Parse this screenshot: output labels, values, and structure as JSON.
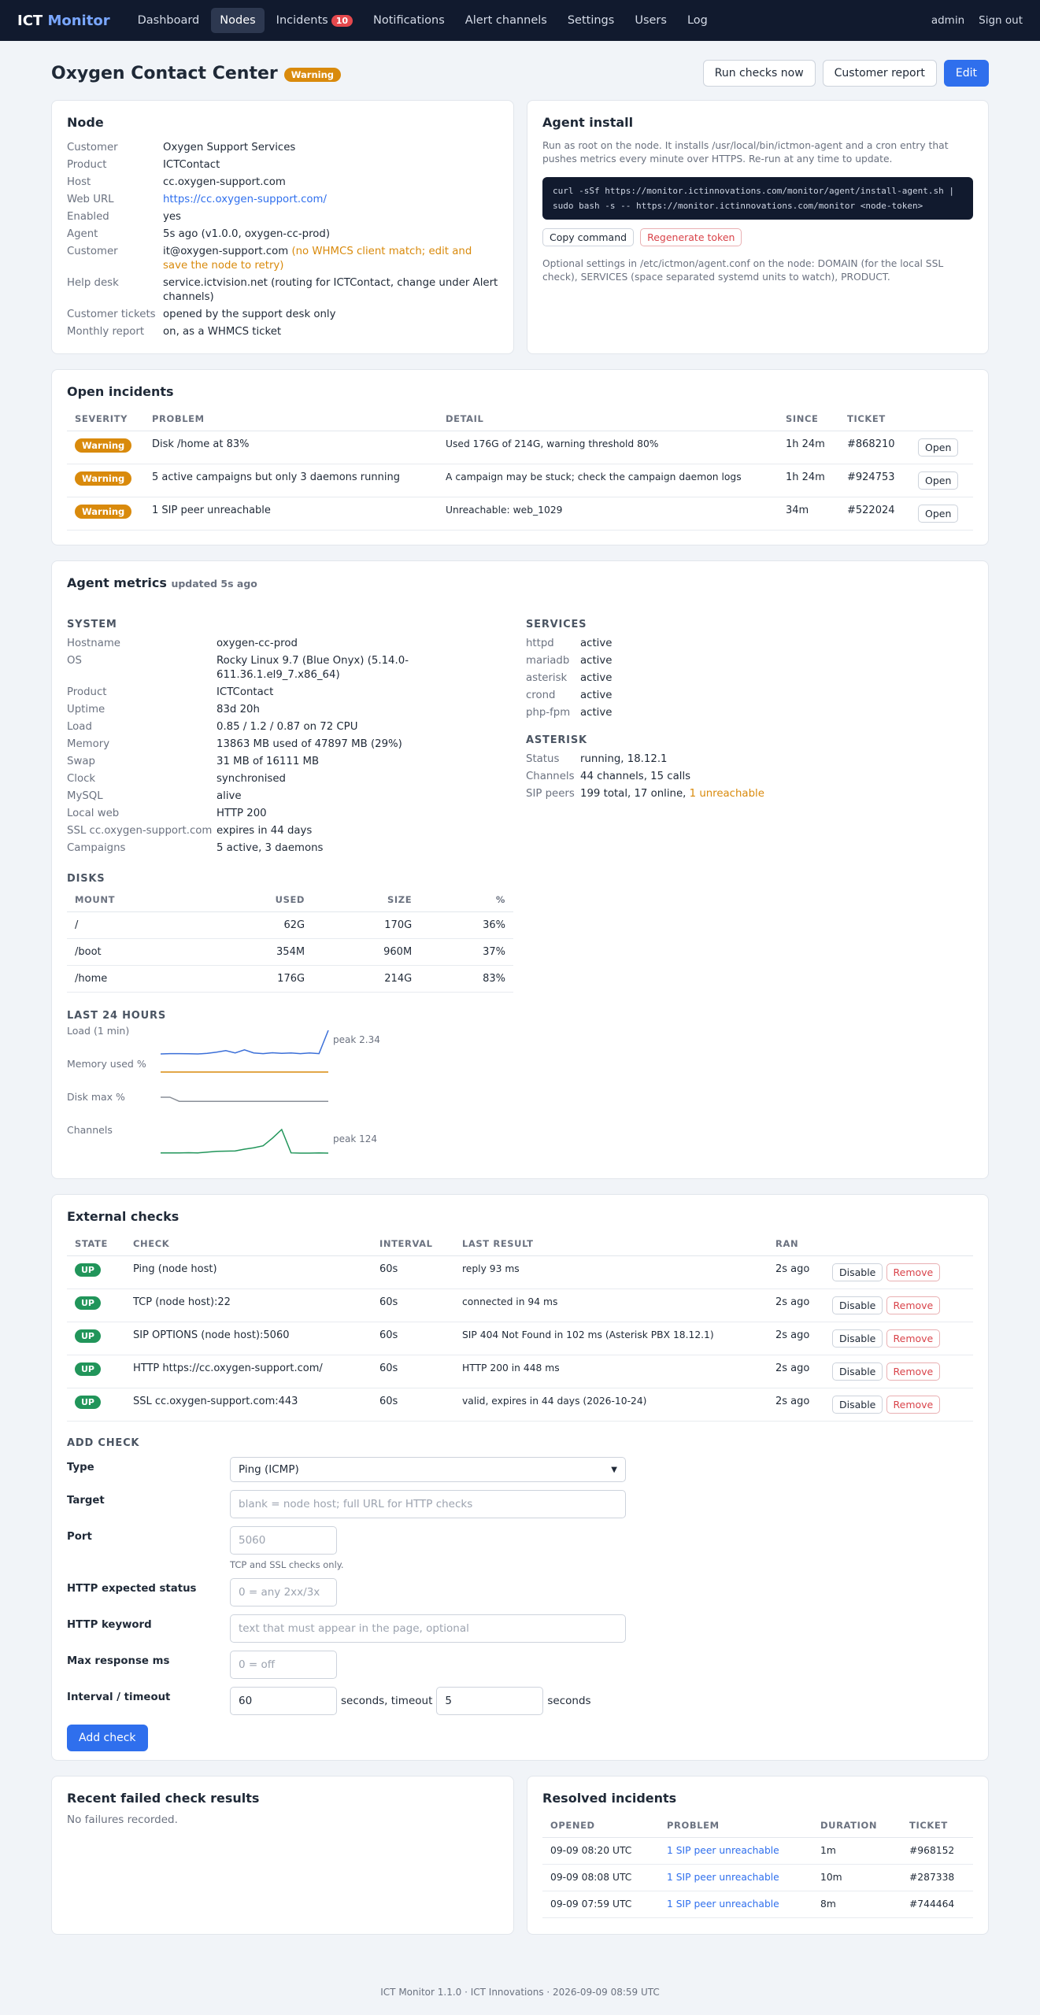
{
  "nav": {
    "brand1": "ICT",
    "brand2": "Monitor",
    "items": [
      "Dashboard",
      "Nodes",
      "Incidents",
      "Notifications",
      "Alert channels",
      "Settings",
      "Users",
      "Log"
    ],
    "incident_count": "10",
    "user": "admin",
    "signout": "Sign out"
  },
  "page": {
    "title": "Oxygen Contact Center",
    "status": "Warning",
    "buttons": {
      "run": "Run checks now",
      "report": "Customer report",
      "edit": "Edit"
    }
  },
  "node": {
    "title": "Node",
    "fields": [
      {
        "k": "Customer",
        "v": "Oxygen Support Services"
      },
      {
        "k": "Product",
        "v": "ICTContact"
      },
      {
        "k": "Host",
        "v": "cc.oxygen-support.com"
      },
      {
        "k": "Web URL",
        "v": "https://cc.oxygen-support.com/"
      },
      {
        "k": "Enabled",
        "v": "yes"
      },
      {
        "k": "Agent",
        "v": "5s ago (v1.0.0, oxygen-cc-prod)"
      },
      {
        "k": "Customer",
        "v": "it@oxygen-support.com",
        "note": "(no WHMCS client match; edit and save the node to retry)"
      },
      {
        "k": "Help desk",
        "v": "service.ictvision.net (routing for ICTContact, change under Alert channels)"
      },
      {
        "k": "Customer tickets",
        "v": "opened by the support desk only"
      },
      {
        "k": "Monthly report",
        "v": "on, as a WHMCS ticket"
      }
    ]
  },
  "agent": {
    "title": "Agent install",
    "desc": "Run as root on the node. It installs /usr/local/bin/ictmon-agent and a cron entry that pushes metrics every minute over HTTPS. Re-run at any time to update.",
    "command": "curl -sSf https://monitor.ictinnovations.com/monitor/agent/install-agent.sh | sudo bash -s -- https://monitor.ictinnovations.com/monitor <node-token>",
    "copy": "Copy command",
    "regen": "Regenerate token",
    "note": "Optional settings in /etc/ictmon/agent.conf on the node: DOMAIN (for the local SSL check), SERVICES (space separated systemd units to watch), PRODUCT."
  },
  "incidents": {
    "title": "Open incidents",
    "headers": [
      "Severity",
      "Problem",
      "Detail",
      "Since",
      "Ticket",
      ""
    ],
    "rows": [
      {
        "sev": "Warning",
        "problem": "Disk /home at 83%",
        "detail": "Used 176G of 214G, warning threshold 80%",
        "since": "1h 24m",
        "ticket": "#868210",
        "action": "Open"
      },
      {
        "sev": "Warning",
        "problem": "5 active campaigns but only 3 daemons running",
        "detail": "A campaign may be stuck; check the campaign daemon logs",
        "since": "1h 24m",
        "ticket": "#924753",
        "action": "Open"
      },
      {
        "sev": "Warning",
        "problem": "1 SIP peer unreachable",
        "detail": "Unreachable: web_1029",
        "since": "34m",
        "ticket": "#522024",
        "action": "Open"
      }
    ]
  },
  "metrics": {
    "title": "Agent metrics",
    "updated": "updated 5s ago",
    "system_title": "System",
    "system": [
      {
        "k": "Hostname",
        "v": "oxygen-cc-prod"
      },
      {
        "k": "OS",
        "v": "Rocky Linux 9.7 (Blue Onyx) (5.14.0-611.36.1.el9_7.x86_64)"
      },
      {
        "k": "Product",
        "v": "ICTContact"
      },
      {
        "k": "Uptime",
        "v": "83d 20h"
      },
      {
        "k": "Load",
        "v": "0.85 / 1.2 / 0.87 on 72 CPU"
      },
      {
        "k": "Memory",
        "v": "13863 MB used of 47897 MB (29%)"
      },
      {
        "k": "Swap",
        "v": "31 MB of 16111 MB"
      },
      {
        "k": "Clock",
        "v": "synchronised"
      },
      {
        "k": "MySQL",
        "v": "alive"
      },
      {
        "k": "Local web",
        "v": "HTTP 200"
      },
      {
        "k": "SSL cc.oxygen-support.com",
        "v": "expires in 44 days"
      },
      {
        "k": "Campaigns",
        "v": "5 active, 3 daemons"
      }
    ],
    "services_title": "Services",
    "services": [
      {
        "k": "httpd",
        "v": "active"
      },
      {
        "k": "mariadb",
        "v": "active"
      },
      {
        "k": "asterisk",
        "v": "active"
      },
      {
        "k": "crond",
        "v": "active"
      },
      {
        "k": "php-fpm",
        "v": "active"
      }
    ],
    "asterisk_title": "Asterisk",
    "asterisk": [
      {
        "k": "Status",
        "v": "running, 18.12.1"
      },
      {
        "k": "Channels",
        "v": "44 channels, 15 calls"
      },
      {
        "k": "SIP peers",
        "v": "199 total, 17 online,",
        "warn": "1 unreachable"
      }
    ],
    "disks_title": "Disks",
    "disk_headers": [
      "Mount",
      "Used",
      "Size",
      "%"
    ],
    "disks": [
      {
        "m": "/",
        "u": "62G",
        "s": "170G",
        "p": "36%"
      },
      {
        "m": "/boot",
        "u": "354M",
        "s": "960M",
        "p": "37%"
      },
      {
        "m": "/home",
        "u": "176G",
        "s": "214G",
        "p": "83%"
      }
    ],
    "last24_title": "Last 24 hours",
    "sparks": [
      {
        "label": "Load (1 min)",
        "peak": "peak 2.34",
        "color": "#3b6fd8",
        "values": [
          0.78,
          0.8,
          0.8,
          0.79,
          0.78,
          0.82,
          0.9,
          1.0,
          0.85,
          1.05,
          0.85,
          0.8,
          0.86,
          0.82,
          0.84,
          0.8,
          0.85,
          0.8,
          2.34
        ]
      },
      {
        "label": "Memory used %",
        "peak": "",
        "color": "#d98a0c",
        "values": [
          29,
          29,
          29,
          29,
          29,
          29,
          29,
          29,
          29,
          29,
          29,
          29,
          29,
          29,
          29,
          29,
          29,
          29,
          29
        ]
      },
      {
        "label": "Disk max %",
        "peak": "",
        "color": "#8a8f98",
        "values": [
          84,
          84,
          83,
          83,
          83,
          83,
          83,
          83,
          83,
          83,
          83,
          83,
          83,
          83,
          83,
          83,
          83,
          83,
          83
        ]
      },
      {
        "label": "Channels",
        "peak": "peak 124",
        "color": "#21955a",
        "values": [
          6,
          6,
          6,
          7,
          6,
          10,
          14,
          15,
          16,
          25,
          32,
          42,
          80,
          124,
          6,
          5,
          5,
          6,
          5
        ]
      }
    ]
  },
  "checks": {
    "title": "External checks",
    "headers": [
      "State",
      "Check",
      "Interval",
      "Last result",
      "Ran",
      ""
    ],
    "rows": [
      {
        "state": "UP",
        "check": "Ping (node host)",
        "interval": "60s",
        "result": "reply 93 ms",
        "ran": "2s ago"
      },
      {
        "state": "UP",
        "check": "TCP (node host):22",
        "interval": "60s",
        "result": "connected in 94 ms",
        "ran": "2s ago"
      },
      {
        "state": "UP",
        "check": "SIP OPTIONS (node host):5060",
        "interval": "60s",
        "result": "SIP 404 Not Found in 102 ms (Asterisk PBX 18.12.1)",
        "ran": "2s ago"
      },
      {
        "state": "UP",
        "check": "HTTP https://cc.oxygen-support.com/",
        "interval": "60s",
        "result": "HTTP 200 in 448 ms",
        "ran": "2s ago"
      },
      {
        "state": "UP",
        "check": "SSL cc.oxygen-support.com:443",
        "interval": "60s",
        "result": "valid, expires in 44 days (2026-10-24)",
        "ran": "2s ago"
      }
    ],
    "disable": "Disable",
    "remove": "Remove"
  },
  "addcheck": {
    "title": "Add check",
    "type_label": "Type",
    "type_value": "Ping (ICMP)",
    "target_label": "Target",
    "target_ph": "blank = node host; full URL for HTTP checks",
    "port_label": "Port",
    "port_ph": "5060",
    "port_hint": "TCP and SSL checks only.",
    "status_label": "HTTP expected status",
    "status_ph": "0 = any 2xx/3x",
    "keyword_label": "HTTP keyword",
    "keyword_ph": "text that must appear in the page, optional",
    "maxms_label": "Max response ms",
    "maxms_ph": "0 = off",
    "interval_label": "Interval / timeout",
    "interval_value": "60",
    "mid_text": "seconds, timeout",
    "timeout_value": "5",
    "end_text": "seconds",
    "button": "Add check"
  },
  "failed": {
    "title": "Recent failed check results",
    "empty": "No failures recorded."
  },
  "resolved": {
    "title": "Resolved incidents",
    "headers": [
      "Opened",
      "Problem",
      "Duration",
      "Ticket"
    ],
    "rows": [
      {
        "o": "09-09 08:20 UTC",
        "p": "1 SIP peer unreachable",
        "d": "1m",
        "t": "#968152"
      },
      {
        "o": "09-09 08:08 UTC",
        "p": "1 SIP peer unreachable",
        "d": "10m",
        "t": "#287338"
      },
      {
        "o": "09-09 07:59 UTC",
        "p": "1 SIP peer unreachable",
        "d": "8m",
        "t": "#744464"
      }
    ]
  },
  "footer": "ICT Monitor 1.1.0 · ICT Innovations · 2026-09-09 08:59 UTC"
}
